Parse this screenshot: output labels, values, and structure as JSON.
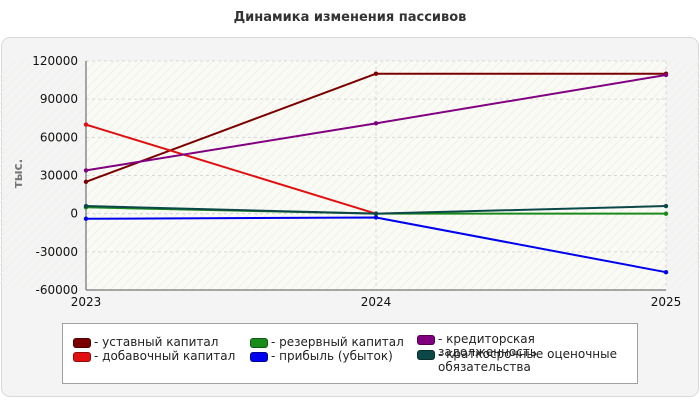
{
  "chart_data": {
    "type": "line",
    "title": "Динамика изменения пассивов",
    "ylabel": "тыс.",
    "xlabel": "",
    "x": [
      "2023",
      "2024",
      "2025"
    ],
    "ylim": [
      -60000,
      120000
    ],
    "yticks": [
      120000,
      90000,
      60000,
      30000,
      0,
      -30000,
      -60000
    ],
    "yticks_labels": [
      "120000",
      "90000",
      "60000",
      "30000",
      "0",
      "-30000",
      "-60000"
    ],
    "grid": true,
    "legend_position": "bottom",
    "series": [
      {
        "name": "уставный капитал",
        "color": "#7a0000",
        "values": [
          25000,
          110000,
          110000
        ]
      },
      {
        "name": "добавочный капитал",
        "color": "#e01010",
        "values": [
          70000,
          0,
          null
        ]
      },
      {
        "name": "резервный капитал",
        "color": "#1a8a1a",
        "values": [
          5000,
          0,
          0
        ]
      },
      {
        "name": "прибыль (убыток)",
        "color": "#0000ee",
        "values": [
          -4000,
          -3000,
          -46000
        ]
      },
      {
        "name": "кредиторская задолженность",
        "color": "#800080",
        "values": [
          34000,
          71000,
          109000
        ]
      },
      {
        "name": "краткосрочные оценочные обязательства",
        "color": "#0d4848",
        "values": [
          6000,
          0,
          6000
        ]
      }
    ]
  },
  "legend": [
    {
      "label": "- уставный капитал",
      "color": "#7a0000"
    },
    {
      "label": "- добавочный капитал",
      "color": "#e01010"
    },
    {
      "label": "- резервный капитал",
      "color": "#1a8a1a"
    },
    {
      "label": "- прибыль (убыток)",
      "color": "#0000ee"
    },
    {
      "label": "- кредиторская задолженность",
      "color": "#800080"
    },
    {
      "label": "- краткосрочные оценочные обязательства",
      "color": "#0d4848"
    }
  ]
}
